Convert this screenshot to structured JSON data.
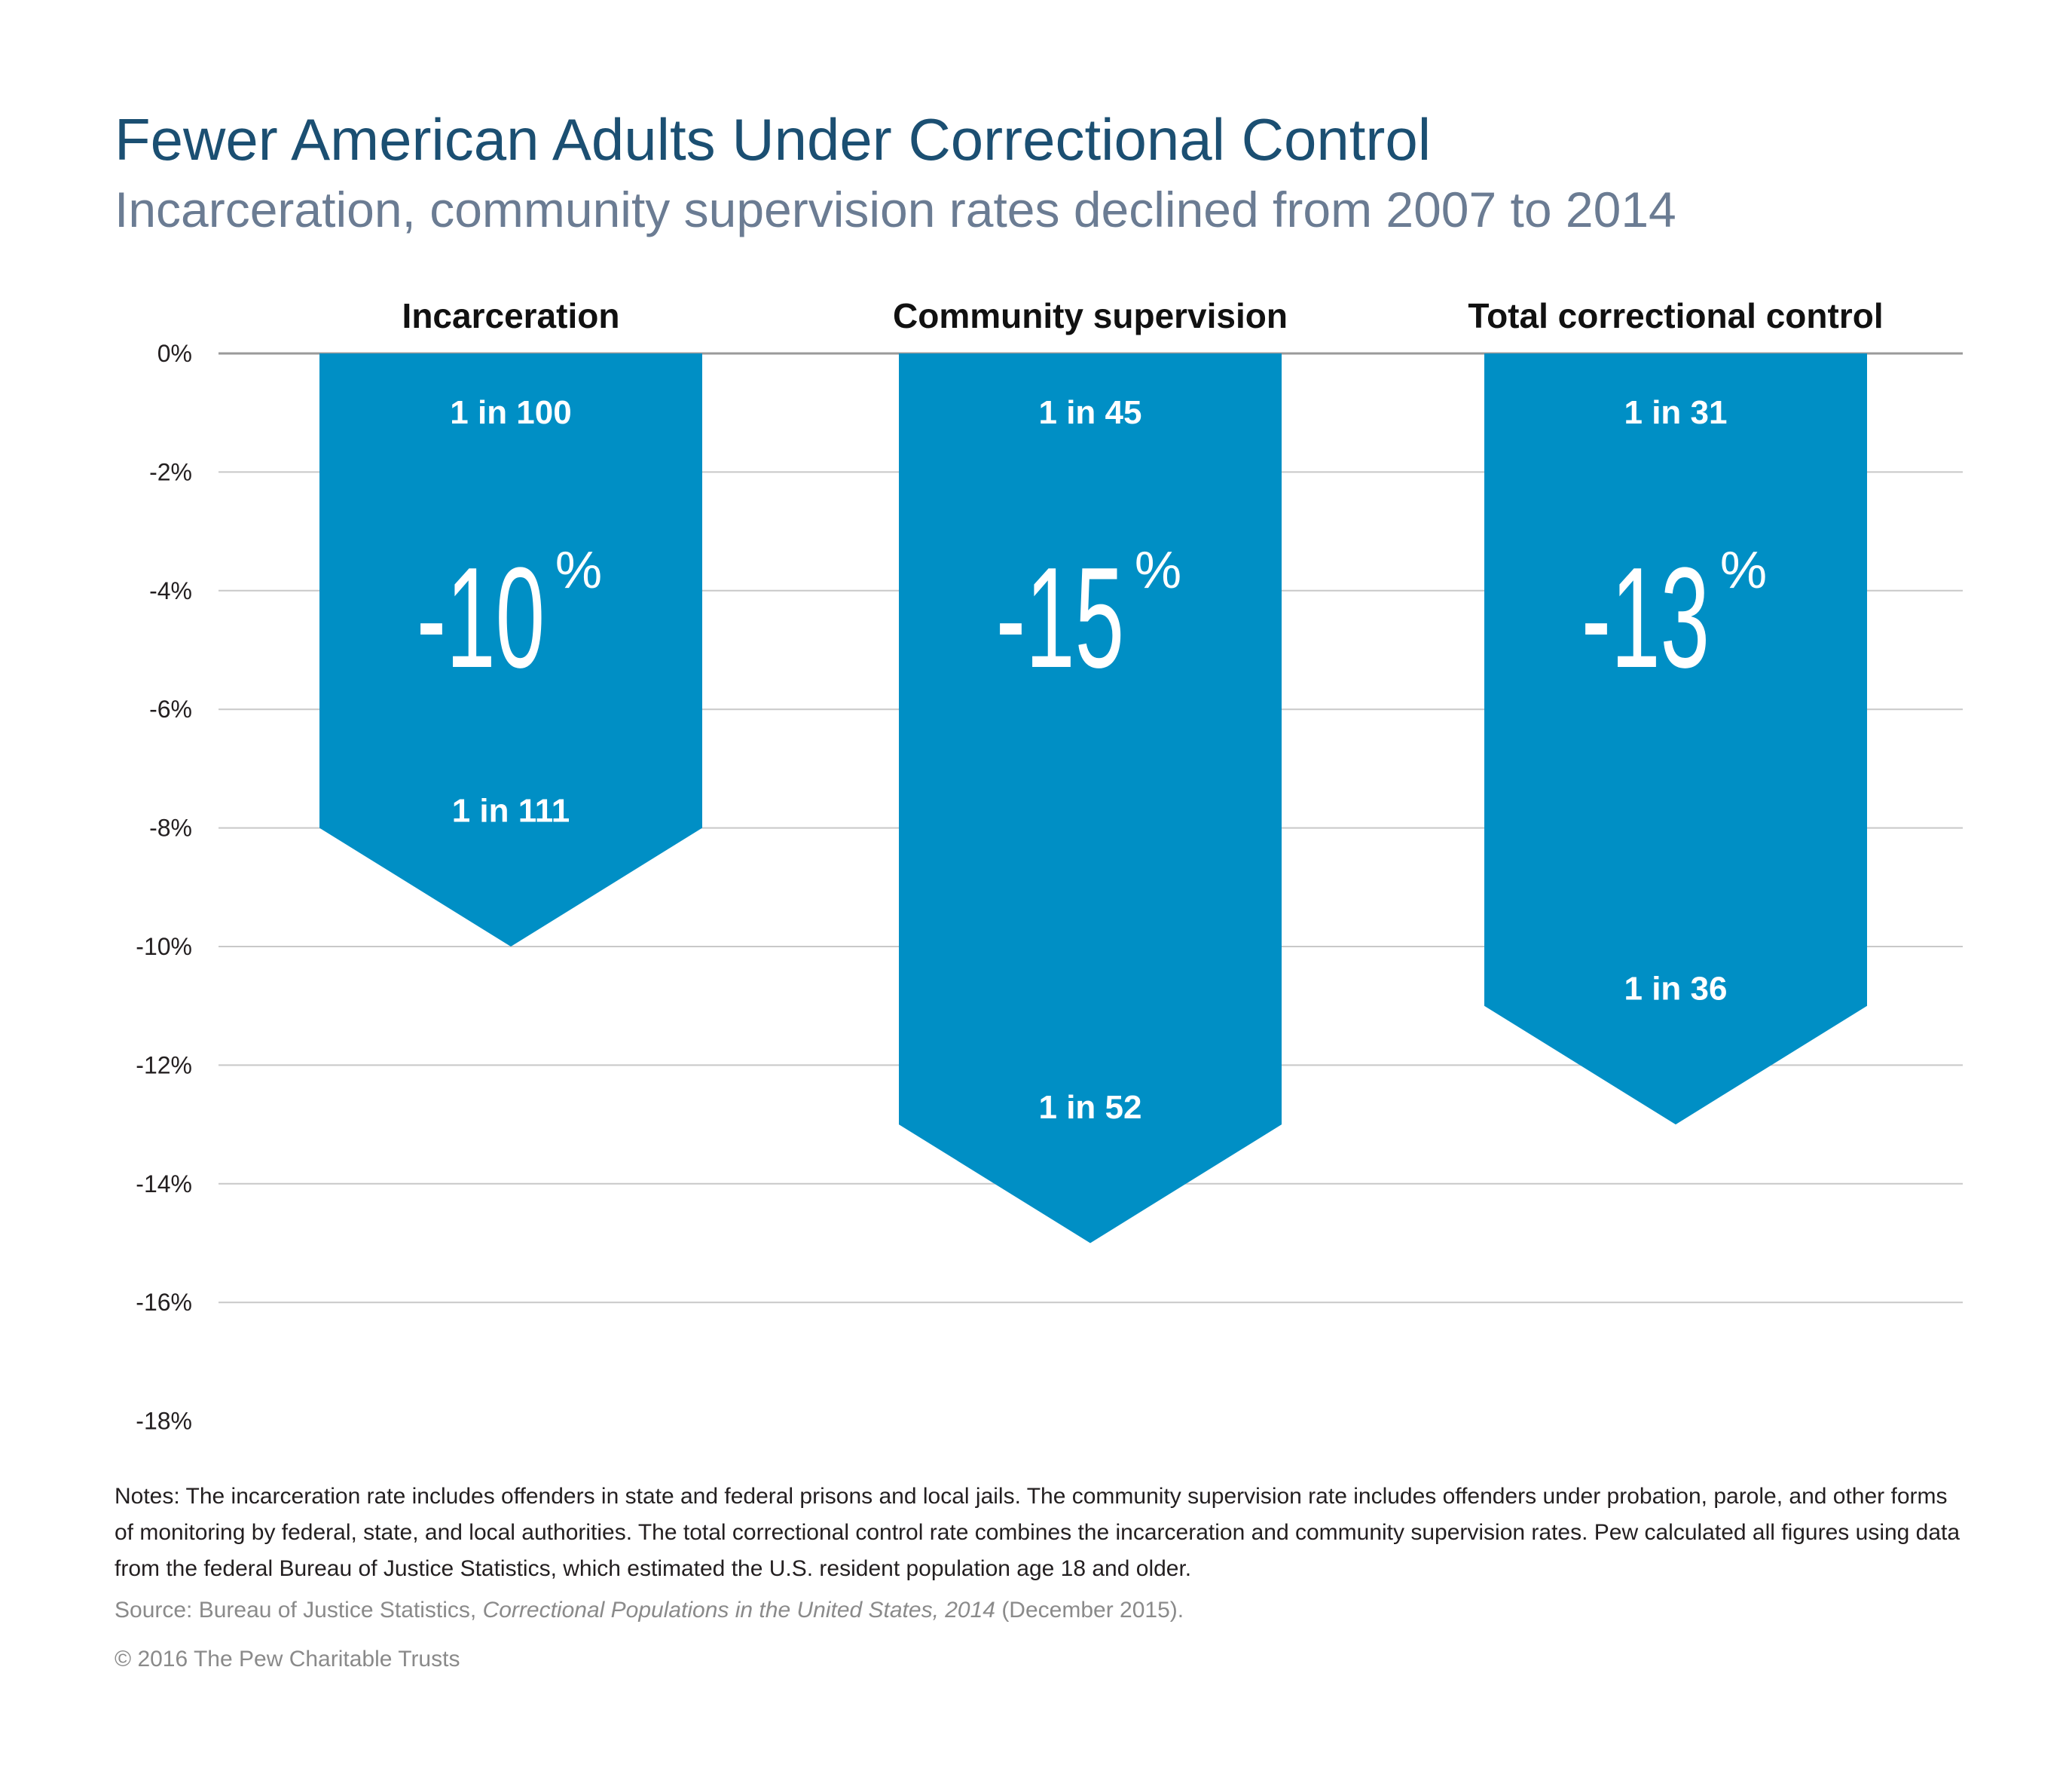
{
  "chart_data": {
    "type": "bar",
    "title": "Fewer American Adults Under Correctional Control",
    "subtitle": "Incarceration, community supervision rates declined from 2007 to 2014",
    "categories": [
      "Incarceration",
      "Community supervision",
      "Total correctional control"
    ],
    "values": [
      -10,
      -15,
      -13
    ],
    "value_labels": [
      "-10",
      "-15",
      "-13"
    ],
    "value_unit": "%",
    "start_labels": [
      "1 in 100",
      "1 in 45",
      "1 in 31"
    ],
    "end_labels": [
      "1 in 111",
      "1 in 52",
      "1 in 36"
    ],
    "y_ticks": [
      0,
      -2,
      -4,
      -6,
      -8,
      -10,
      -12,
      -14,
      -16,
      -18
    ],
    "y_tick_labels": [
      "0%",
      "-2%",
      "-4%",
      "-6%",
      "-8%",
      "-10%",
      "-12%",
      "-14%",
      "-16%",
      "-18%"
    ],
    "ylim": [
      -18,
      0
    ],
    "grid": true,
    "bar_color": "#008fc5",
    "axis_color": "#9a9a9a",
    "grid_color": "#c8c8c8"
  },
  "notes": "Notes: The incarceration rate includes offenders in state and federal prisons and local jails. The community supervision rate includes offenders under probation, parole, and other forms of monitoring by federal, state, and local authorities. The total correctional control rate combines the incarceration and community supervision rates.  Pew calculated all figures using data from the federal Bureau of Justice Statistics, which estimated the U.S. resident population age 18 and older.",
  "source": {
    "prefix": "Source: Bureau of Justice Statistics, ",
    "title": "Correctional Populations in the United States, 2014",
    "suffix": " (December 2015)."
  },
  "copyright": "© 2016 The Pew Charitable Trusts"
}
